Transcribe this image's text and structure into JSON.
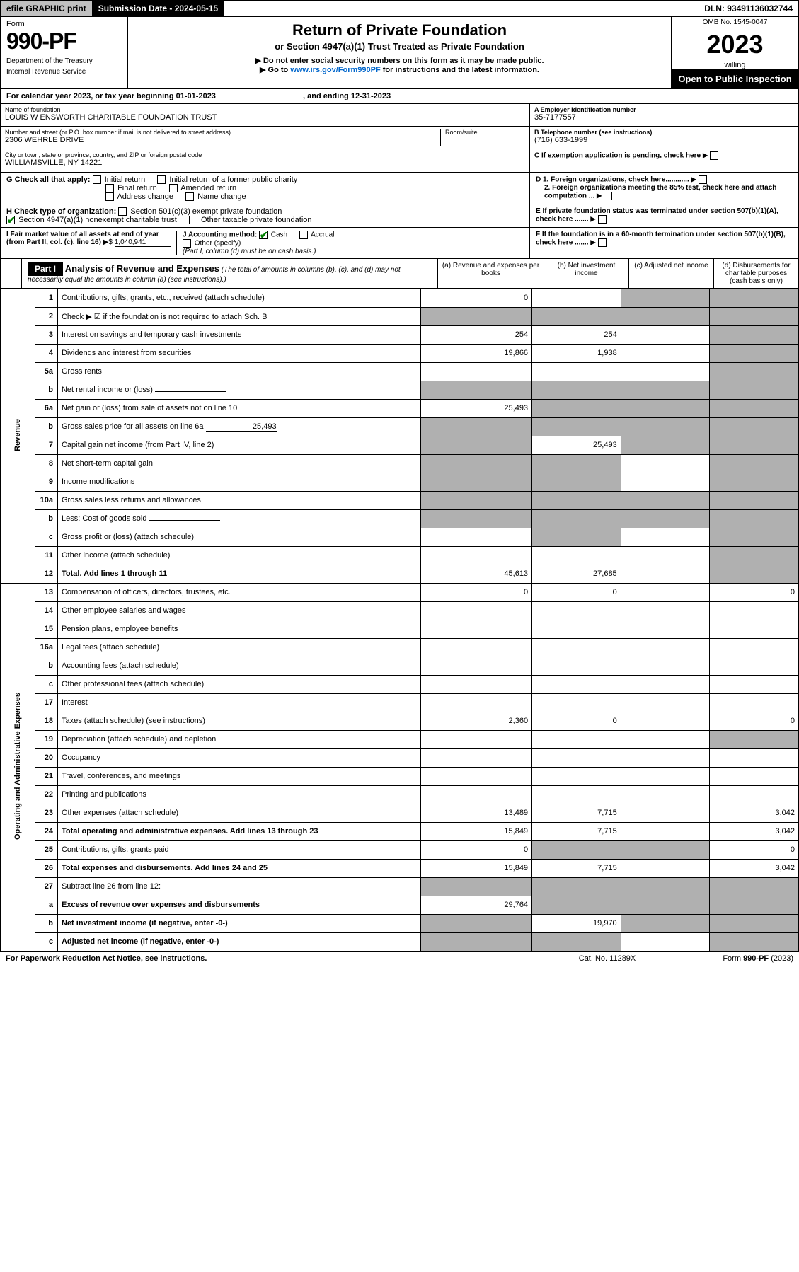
{
  "topbar": {
    "efile": "efile GRAPHIC print",
    "submission": "Submission Date - 2024-05-15",
    "dln": "DLN: 93491136032744"
  },
  "header": {
    "form_label": "Form",
    "form_num": "990-PF",
    "dept1": "Department of the Treasury",
    "dept2": "Internal Revenue Service",
    "title": "Return of Private Foundation",
    "subtitle": "or Section 4947(a)(1) Trust Treated as Private Foundation",
    "instr1": "▶ Do not enter social security numbers on this form as it may be made public.",
    "instr2_pre": "▶ Go to ",
    "instr2_link": "www.irs.gov/Form990PF",
    "instr2_post": " for instructions and the latest information.",
    "omb": "OMB No. 1545-0047",
    "year": "2023",
    "open": "Open to Public Inspection"
  },
  "cal_year": {
    "text_pre": "For calendar year 2023, or tax year beginning ",
    "begin": "01-01-2023",
    "mid": " , and ending ",
    "end": "12-31-2023"
  },
  "info": {
    "name_label": "Name of foundation",
    "name": "LOUIS W ENSWORTH CHARITABLE FOUNDATION TRUST",
    "addr_label": "Number and street (or P.O. box number if mail is not delivered to street address)",
    "addr": "2306 WEHRLE DRIVE",
    "room_label": "Room/suite",
    "city_label": "City or town, state or province, country, and ZIP or foreign postal code",
    "city": "WILLIAMSVILLE, NY  14221",
    "ein_label": "A Employer identification number",
    "ein": "35-7177557",
    "phone_label": "B Telephone number (see instructions)",
    "phone": "(716) 633-1999",
    "c_label": "C If exemption application is pending, check here",
    "d1": "D 1. Foreign organizations, check here............",
    "d2": "2. Foreign organizations meeting the 85% test, check here and attach computation ...",
    "e": "E  If private foundation status was terminated under section 507(b)(1)(A), check here .......",
    "f": "F  If the foundation is in a 60-month termination under section 507(b)(1)(B), check here .......",
    "g_label": "G Check all that apply:",
    "g_initial": "Initial return",
    "g_initial_former": "Initial return of a former public charity",
    "g_final": "Final return",
    "g_amended": "Amended return",
    "g_address": "Address change",
    "g_name": "Name change",
    "h_label": "H Check type of organization:",
    "h_501": "Section 501(c)(3) exempt private foundation",
    "h_4947": "Section 4947(a)(1) nonexempt charitable trust",
    "h_other": "Other taxable private foundation",
    "i_label": "I Fair market value of all assets at end of year (from Part II, col. (c), line 16)",
    "i_val": "1,040,941",
    "j_label": "J Accounting method:",
    "j_cash": "Cash",
    "j_accrual": "Accrual",
    "j_other": "Other (specify)",
    "j_note": "(Part I, column (d) must be on cash basis.)"
  },
  "part1": {
    "label": "Part I",
    "title": "Analysis of Revenue and Expenses",
    "note": "(The total of amounts in columns (b), (c), and (d) may not necessarily equal the amounts in column (a) (see instructions).)",
    "col_a": "(a)   Revenue and expenses per books",
    "col_b": "(b)   Net investment income",
    "col_c": "(c)   Adjusted net income",
    "col_d": "(d)   Disbursements for charitable purposes (cash basis only)"
  },
  "side_labels": {
    "revenue": "Revenue",
    "expenses": "Operating and Administrative Expenses"
  },
  "rows": [
    {
      "n": "1",
      "desc": "Contributions, gifts, grants, etc., received (attach schedule)",
      "a": "0",
      "b": "",
      "c": "shade",
      "d": "shade"
    },
    {
      "n": "2",
      "desc": "Check ▶ ☑ if the foundation is not required to attach Sch. B",
      "a": "shade",
      "b": "shade",
      "c": "shade",
      "d": "shade",
      "special": "check"
    },
    {
      "n": "3",
      "desc": "Interest on savings and temporary cash investments",
      "a": "254",
      "b": "254",
      "c": "",
      "d": "shade"
    },
    {
      "n": "4",
      "desc": "Dividends and interest from securities",
      "a": "19,866",
      "b": "1,938",
      "c": "",
      "d": "shade"
    },
    {
      "n": "5a",
      "desc": "Gross rents",
      "a": "",
      "b": "",
      "c": "",
      "d": "shade"
    },
    {
      "n": "b",
      "desc": "Net rental income or (loss)",
      "a": "shade",
      "b": "shade",
      "c": "shade",
      "d": "shade",
      "inline": true
    },
    {
      "n": "6a",
      "desc": "Net gain or (loss) from sale of assets not on line 10",
      "a": "25,493",
      "b": "shade",
      "c": "shade",
      "d": "shade"
    },
    {
      "n": "b",
      "desc": "Gross sales price for all assets on line 6a",
      "a": "shade",
      "b": "shade",
      "c": "shade",
      "d": "shade",
      "inline": true,
      "inline_val": "25,493"
    },
    {
      "n": "7",
      "desc": "Capital gain net income (from Part IV, line 2)",
      "a": "shade",
      "b": "25,493",
      "c": "shade",
      "d": "shade"
    },
    {
      "n": "8",
      "desc": "Net short-term capital gain",
      "a": "shade",
      "b": "shade",
      "c": "",
      "d": "shade"
    },
    {
      "n": "9",
      "desc": "Income modifications",
      "a": "shade",
      "b": "shade",
      "c": "",
      "d": "shade"
    },
    {
      "n": "10a",
      "desc": "Gross sales less returns and allowances",
      "a": "shade",
      "b": "shade",
      "c": "shade",
      "d": "shade",
      "inline": true
    },
    {
      "n": "b",
      "desc": "Less: Cost of goods sold",
      "a": "shade",
      "b": "shade",
      "c": "shade",
      "d": "shade",
      "inline": true
    },
    {
      "n": "c",
      "desc": "Gross profit or (loss) (attach schedule)",
      "a": "",
      "b": "shade",
      "c": "",
      "d": "shade"
    },
    {
      "n": "11",
      "desc": "Other income (attach schedule)",
      "a": "",
      "b": "",
      "c": "",
      "d": "shade"
    },
    {
      "n": "12",
      "desc": "Total. Add lines 1 through 11",
      "a": "45,613",
      "b": "27,685",
      "c": "",
      "d": "shade",
      "bold": true
    },
    {
      "n": "13",
      "desc": "Compensation of officers, directors, trustees, etc.",
      "a": "0",
      "b": "0",
      "c": "",
      "d": "0"
    },
    {
      "n": "14",
      "desc": "Other employee salaries and wages",
      "a": "",
      "b": "",
      "c": "",
      "d": ""
    },
    {
      "n": "15",
      "desc": "Pension plans, employee benefits",
      "a": "",
      "b": "",
      "c": "",
      "d": ""
    },
    {
      "n": "16a",
      "desc": "Legal fees (attach schedule)",
      "a": "",
      "b": "",
      "c": "",
      "d": ""
    },
    {
      "n": "b",
      "desc": "Accounting fees (attach schedule)",
      "a": "",
      "b": "",
      "c": "",
      "d": ""
    },
    {
      "n": "c",
      "desc": "Other professional fees (attach schedule)",
      "a": "",
      "b": "",
      "c": "",
      "d": ""
    },
    {
      "n": "17",
      "desc": "Interest",
      "a": "",
      "b": "",
      "c": "",
      "d": ""
    },
    {
      "n": "18",
      "desc": "Taxes (attach schedule) (see instructions)",
      "a": "2,360",
      "b": "0",
      "c": "",
      "d": "0"
    },
    {
      "n": "19",
      "desc": "Depreciation (attach schedule) and depletion",
      "a": "",
      "b": "",
      "c": "",
      "d": "shade"
    },
    {
      "n": "20",
      "desc": "Occupancy",
      "a": "",
      "b": "",
      "c": "",
      "d": ""
    },
    {
      "n": "21",
      "desc": "Travel, conferences, and meetings",
      "a": "",
      "b": "",
      "c": "",
      "d": ""
    },
    {
      "n": "22",
      "desc": "Printing and publications",
      "a": "",
      "b": "",
      "c": "",
      "d": ""
    },
    {
      "n": "23",
      "desc": "Other expenses (attach schedule)",
      "a": "13,489",
      "b": "7,715",
      "c": "",
      "d": "3,042"
    },
    {
      "n": "24",
      "desc": "Total operating and administrative expenses. Add lines 13 through 23",
      "a": "15,849",
      "b": "7,715",
      "c": "",
      "d": "3,042",
      "bold": true
    },
    {
      "n": "25",
      "desc": "Contributions, gifts, grants paid",
      "a": "0",
      "b": "shade",
      "c": "shade",
      "d": "0"
    },
    {
      "n": "26",
      "desc": "Total expenses and disbursements. Add lines 24 and 25",
      "a": "15,849",
      "b": "7,715",
      "c": "",
      "d": "3,042",
      "bold": true
    },
    {
      "n": "27",
      "desc": "Subtract line 26 from line 12:",
      "a": "shade",
      "b": "shade",
      "c": "shade",
      "d": "shade"
    },
    {
      "n": "a",
      "desc": "Excess of revenue over expenses and disbursements",
      "a": "29,764",
      "b": "shade",
      "c": "shade",
      "d": "shade",
      "bold": true
    },
    {
      "n": "b",
      "desc": "Net investment income (if negative, enter -0-)",
      "a": "shade",
      "b": "19,970",
      "c": "shade",
      "d": "shade",
      "bold": true
    },
    {
      "n": "c",
      "desc": "Adjusted net income (if negative, enter -0-)",
      "a": "shade",
      "b": "shade",
      "c": "",
      "d": "shade",
      "bold": true
    }
  ],
  "footer": {
    "left": "For Paperwork Reduction Act Notice, see instructions.",
    "mid": "Cat. No. 11289X",
    "right": "Form 990-PF (2023)"
  }
}
